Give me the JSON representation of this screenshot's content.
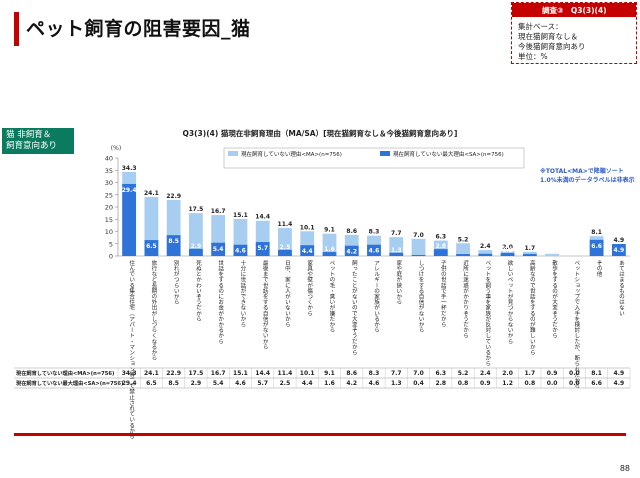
{
  "page_title": "ペット飼育の阻害要因_猫",
  "survey": {
    "tab": "調査③　Q3(3)(4)",
    "base_label": "集計ベース：",
    "base_line1": "現在猫飼育なし＆",
    "base_line2": "今後猫飼育意向あり",
    "unit": "単位：%"
  },
  "side_label_line1": "猫 非飼育＆",
  "side_label_line2": "飼育意向あり",
  "note_line1": "※TOTAL<MA>で降順ソート",
  "note_line2": "1.0%未満のデータラベルは非表示",
  "page_number": "88",
  "chart_data": {
    "type": "bar",
    "title": "Q3(3)(4)  猫現在非飼育理由（MA/SA）[現在猫飼育なし＆今後猫飼育意向あり]",
    "ylabel": "(%)",
    "ylim": [
      0,
      40
    ],
    "yticks": [
      "0",
      "5",
      "10",
      "15",
      "20",
      "25",
      "30",
      "35",
      "40"
    ],
    "legend_position": "top",
    "grid": false,
    "categories": [
      "住んでいる集合住宅（アパート・マンション等）で禁止されているから",
      "旅行など長期の外出がしづらくなるから",
      "別れがつらいから",
      "死ぬとかわいそうだから",
      "世話をするのにお金がかかるから",
      "十分に世話ができないから",
      "最後まで世話をする自信がないから",
      "日中、家に人がいないから",
      "家具や壁が傷つくから",
      "ペットの毛・臭いが嫌だから",
      "飼ったことがないので大変そうだから",
      "アレルギーの家族がいるから",
      "家や庭が狭いから",
      "しつけをする自信がないから",
      "子供の世話で手一杯だから",
      "近所に迷惑がかかりそうだから",
      "ペットを飼う事を家族が反対しているから",
      "欲しいペットが見つからないから",
      "高齢なので世話をするのが難しいから",
      "散歩をするのが大変そうだから",
      "ペットショップで入手を検討したが、断られたから",
      "その他",
      "あてはまるものはない"
    ],
    "series": [
      {
        "name": "現在飼育していない理由<MA>(n=756)",
        "color": "#a7cdf0",
        "values": [
          34.3,
          24.1,
          22.9,
          17.5,
          16.7,
          15.1,
          14.4,
          11.4,
          10.1,
          9.1,
          8.6,
          8.3,
          7.7,
          7.0,
          6.3,
          5.2,
          2.4,
          2.0,
          1.7,
          0.9,
          0.0,
          8.1,
          4.9
        ],
        "labels": [
          "34.3",
          "24.1",
          "22.9",
          "17.5",
          "16.7",
          "15.1",
          "14.4",
          "11.4",
          "10.1",
          "9.1",
          "8.6",
          "8.3",
          "7.7",
          "7.0",
          "6.3",
          "5.2",
          "2.4",
          "2.0",
          "1.7",
          "",
          "",
          "8.1",
          "4.9"
        ]
      },
      {
        "name": "現在飼育していない最大理由<SA>(n=756)",
        "color": "#2e73d8",
        "values": [
          29.4,
          6.5,
          8.5,
          2.9,
          5.4,
          4.6,
          5.7,
          2.5,
          4.4,
          1.6,
          4.2,
          4.6,
          1.3,
          0.4,
          2.8,
          0.8,
          0.9,
          1.2,
          0.8,
          0.0,
          0.0,
          6.6,
          4.9
        ],
        "labels": [
          "29.4",
          "6.5",
          "8.5",
          "2.9",
          "5.4",
          "4.6",
          "5.7",
          "2.5",
          "4.4",
          "1.6",
          "4.2",
          "4.6",
          "1.3",
          "",
          "2.8",
          "",
          "",
          "1.2",
          "",
          "",
          "",
          "6.6",
          "4.9"
        ]
      }
    ],
    "table_rows": [
      {
        "label": "現在飼育していない理由<MA>(n=756)",
        "values": [
          "34.3",
          "24.1",
          "22.9",
          "17.5",
          "16.7",
          "15.1",
          "14.4",
          "11.4",
          "10.1",
          "9.1",
          "8.6",
          "8.3",
          "7.7",
          "7.0",
          "6.3",
          "5.2",
          "2.4",
          "2.0",
          "1.7",
          "0.9",
          "0.0",
          "8.1",
          "4.9"
        ]
      },
      {
        "label": "現在飼育していない最大理由<SA>(n=756)",
        "values": [
          "29.4",
          "6.5",
          "8.5",
          "2.9",
          "5.4",
          "4.6",
          "5.7",
          "2.5",
          "4.4",
          "1.6",
          "4.2",
          "4.6",
          "1.3",
          "0.4",
          "2.8",
          "0.8",
          "0.9",
          "1.2",
          "0.8",
          "0.0",
          "0.0",
          "6.6",
          "4.9"
        ]
      }
    ]
  }
}
